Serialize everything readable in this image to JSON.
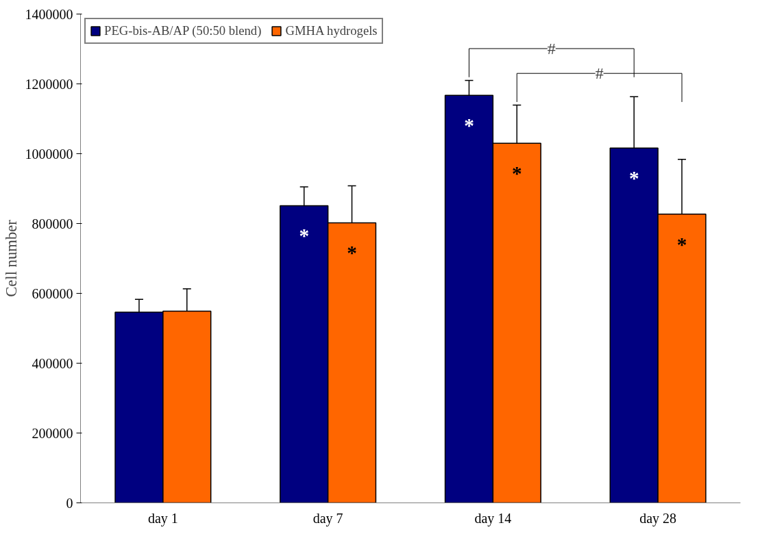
{
  "chart_data": {
    "type": "bar",
    "ylabel": "Cell number",
    "categories": [
      "day 1",
      "day 7",
      "day 14",
      "day 28"
    ],
    "series": [
      {
        "name": "PEG-bis-AB/AP (50:50 blend)",
        "color": "#000080",
        "values": [
          546000,
          851000,
          1167000,
          1016000
        ],
        "errors": [
          [
            546000,
            583000
          ],
          [
            851000,
            905000
          ],
          [
            1167000,
            1210000
          ],
          [
            1016000,
            1163000
          ]
        ],
        "value_labels": [
          null,
          "*",
          "*",
          "*"
        ]
      },
      {
        "name": "GMHA hydrogels",
        "color": "#ff6600",
        "values": [
          549000,
          802000,
          1030000,
          827000
        ],
        "errors": [
          [
            549000,
            613000
          ],
          [
            802000,
            908000
          ],
          [
            1030000,
            1139000
          ],
          [
            827000,
            984000
          ]
        ],
        "value_labels": [
          null,
          "*",
          "*",
          "*"
        ]
      }
    ],
    "annotations": [
      "#",
      "#"
    ],
    "ylim": [
      0,
      1400000
    ],
    "yticks": [
      0,
      200000,
      400000,
      600000,
      800000,
      1000000,
      1200000,
      1400000
    ],
    "grid": false,
    "legend": "top left"
  }
}
